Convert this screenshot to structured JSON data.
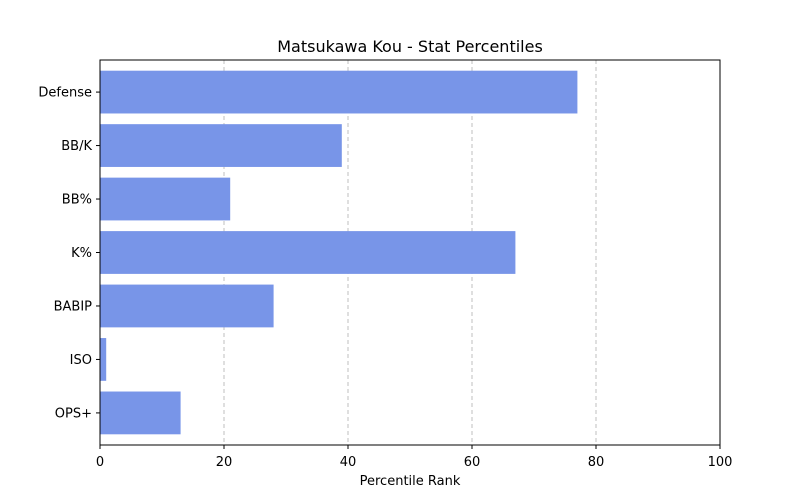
{
  "chart_data": {
    "type": "bar",
    "orientation": "horizontal",
    "title": "Matsukawa Kou - Stat Percentiles",
    "xlabel": "Percentile Rank",
    "ylabel": "",
    "xlim": [
      0,
      100
    ],
    "xticks": [
      0,
      20,
      40,
      60,
      80,
      100
    ],
    "grid": "x-dashed",
    "bar_color": "#7895e8",
    "categories": [
      "Defense",
      "BB/K",
      "BB%",
      "K%",
      "BABIP",
      "ISO",
      "OPS+"
    ],
    "values": [
      77,
      39,
      21,
      67,
      28,
      1,
      13
    ]
  }
}
